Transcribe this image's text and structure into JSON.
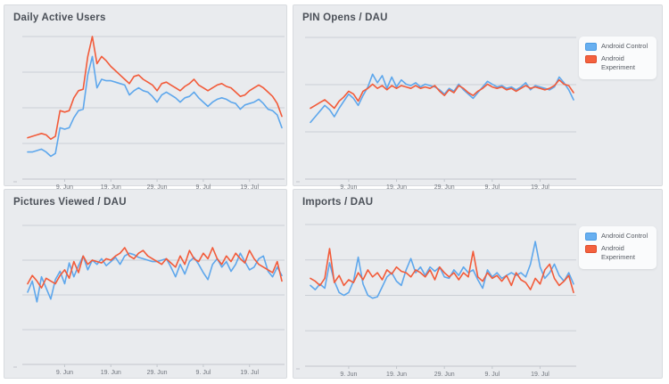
{
  "palette": {
    "control": "#5ea7ec",
    "experiment": "#f25b3a",
    "grid": "#cbcfd5",
    "axis": "#c2c6cc",
    "tick_text": "#70757d",
    "panel_bg": "#e9ebee",
    "panel_border": "#d8dbdf",
    "title_text": "#4b5058",
    "legend_bg": "#fafbfc"
  },
  "legend": {
    "items": [
      {
        "label": "Android Control",
        "color_key": "control"
      },
      {
        "label": "Android Experiment",
        "color_key": "experiment"
      }
    ]
  },
  "chart_data": [
    {
      "id": "daily-active-users",
      "type": "line",
      "title": "Daily Active Users",
      "xlabel": "",
      "ylabel": "",
      "ylim": [
        0,
        100
      ],
      "grid": true,
      "legend_visible": false,
      "x_tick_labels": [
        "9. Jun",
        "19. Jun",
        "29. Jun",
        "9. Jul",
        "19. Jul"
      ],
      "tick_day_indices": [
        8,
        18,
        28,
        38,
        48
      ],
      "total_days": 56,
      "series": [
        {
          "name": "Android Control",
          "color_key": "control",
          "values": [
            19,
            19,
            20,
            21,
            19,
            16,
            18,
            36,
            35,
            36,
            43,
            48,
            49,
            73,
            86,
            64,
            70,
            69,
            69,
            68,
            67,
            66,
            59,
            62,
            64,
            62,
            61,
            58,
            54,
            59,
            61,
            59,
            57,
            54,
            57,
            58,
            61,
            57,
            54,
            51,
            54,
            56,
            57,
            56,
            54,
            53,
            49,
            52,
            53,
            54,
            56,
            53,
            49,
            48,
            45,
            36
          ]
        },
        {
          "name": "Android Experiment",
          "color_key": "experiment",
          "values": [
            29,
            30,
            31,
            32,
            31,
            28,
            30,
            48,
            47,
            48,
            57,
            62,
            63,
            86,
            100,
            81,
            86,
            83,
            79,
            76,
            73,
            70,
            67,
            72,
            73,
            70,
            68,
            66,
            62,
            67,
            68,
            66,
            64,
            62,
            65,
            67,
            70,
            66,
            64,
            62,
            64,
            66,
            67,
            65,
            64,
            61,
            58,
            59,
            62,
            64,
            66,
            64,
            61,
            58,
            53,
            44
          ]
        }
      ]
    },
    {
      "id": "pin-opens-dau",
      "type": "line",
      "title": "PIN Opens / DAU",
      "xlabel": "",
      "ylabel": "",
      "ylim": [
        0,
        100
      ],
      "grid": true,
      "legend_visible": true,
      "x_tick_labels": [
        "9. Jun",
        "19. Jun",
        "29. Jun",
        "9. Jul",
        "19. Jul"
      ],
      "tick_day_indices": [
        8,
        18,
        28,
        38,
        48
      ],
      "total_days": 56,
      "series": [
        {
          "name": "Android Control",
          "color_key": "control",
          "values": [
            40,
            44,
            48,
            52,
            49,
            44,
            50,
            55,
            60,
            57,
            52,
            59,
            65,
            74,
            68,
            73,
            64,
            72,
            65,
            70,
            67,
            66,
            68,
            65,
            67,
            66,
            65,
            63,
            60,
            64,
            62,
            67,
            63,
            60,
            57,
            61,
            65,
            69,
            67,
            65,
            66,
            64,
            65,
            63,
            65,
            68,
            63,
            66,
            65,
            64,
            63,
            65,
            72,
            68,
            63,
            56
          ]
        },
        {
          "name": "Android Experiment",
          "color_key": "experiment",
          "values": [
            50,
            52,
            54,
            56,
            53,
            50,
            55,
            58,
            62,
            60,
            55,
            62,
            64,
            67,
            64,
            66,
            63,
            66,
            64,
            66,
            65,
            64,
            66,
            64,
            65,
            64,
            66,
            62,
            59,
            63,
            61,
            66,
            64,
            61,
            59,
            62,
            64,
            67,
            65,
            64,
            65,
            63,
            64,
            62,
            64,
            66,
            64,
            65,
            64,
            63,
            64,
            66,
            70,
            67,
            66,
            61
          ]
        }
      ]
    },
    {
      "id": "pictures-viewed-dau",
      "type": "line",
      "title": "Pictures Viewed / DAU",
      "xlabel": "",
      "ylabel": "",
      "ylim": [
        0,
        100
      ],
      "grid": true,
      "legend_visible": false,
      "x_tick_labels": [
        "9. Jun",
        "19. Jun",
        "29. Jun",
        "9. Jul",
        "19. Jul"
      ],
      "tick_day_indices": [
        8,
        18,
        28,
        38,
        48
      ],
      "total_days": 56,
      "series": [
        {
          "name": "Android Control",
          "color_key": "control",
          "values": [
            52,
            60,
            45,
            63,
            55,
            47,
            61,
            67,
            58,
            73,
            63,
            71,
            78,
            68,
            75,
            72,
            76,
            71,
            74,
            77,
            72,
            78,
            80,
            79,
            77,
            76,
            75,
            74,
            74,
            75,
            76,
            70,
            63,
            72,
            65,
            74,
            77,
            72,
            66,
            61,
            72,
            76,
            70,
            74,
            67,
            72,
            80,
            74,
            68,
            70,
            76,
            78,
            67,
            63,
            70,
            64
          ]
        },
        {
          "name": "Android Experiment",
          "color_key": "experiment",
          "values": [
            58,
            64,
            60,
            55,
            62,
            60,
            58,
            64,
            68,
            62,
            74,
            66,
            78,
            72,
            75,
            74,
            73,
            76,
            75,
            78,
            80,
            84,
            78,
            76,
            80,
            82,
            78,
            76,
            74,
            72,
            76,
            73,
            70,
            78,
            72,
            82,
            76,
            74,
            80,
            76,
            84,
            76,
            72,
            78,
            74,
            80,
            76,
            73,
            82,
            76,
            72,
            70,
            68,
            66,
            74,
            60
          ]
        }
      ]
    },
    {
      "id": "imports-dau",
      "type": "line",
      "title": "Imports / DAU",
      "xlabel": "",
      "ylabel": "",
      "ylim": [
        0,
        100
      ],
      "grid": true,
      "legend_visible": true,
      "x_tick_labels": [
        "9. Jun",
        "19. Jun",
        "29. Jun",
        "9. Jul",
        "19. Jul"
      ],
      "tick_day_indices": [
        8,
        18,
        28,
        38,
        48
      ],
      "total_days": 56,
      "series": [
        {
          "name": "Android Control",
          "color_key": "control",
          "values": [
            57,
            54,
            58,
            55,
            73,
            60,
            52,
            50,
            52,
            60,
            77,
            58,
            50,
            48,
            49,
            56,
            63,
            66,
            60,
            57,
            68,
            76,
            66,
            70,
            64,
            70,
            67,
            70,
            63,
            62,
            68,
            64,
            70,
            66,
            68,
            61,
            55,
            68,
            63,
            66,
            62,
            64,
            66,
            64,
            66,
            63,
            72,
            88,
            70,
            62,
            66,
            72,
            64,
            60,
            66,
            58
          ]
        },
        {
          "name": "Android Experiment",
          "color_key": "experiment",
          "values": [
            62,
            60,
            57,
            62,
            83,
            59,
            64,
            57,
            61,
            59,
            66,
            61,
            68,
            63,
            66,
            61,
            68,
            65,
            70,
            67,
            66,
            63,
            68,
            66,
            63,
            68,
            61,
            70,
            66,
            63,
            66,
            61,
            66,
            63,
            81,
            63,
            60,
            66,
            62,
            64,
            60,
            64,
            57,
            66,
            61,
            59,
            54,
            62,
            58,
            68,
            72,
            62,
            57,
            60,
            64,
            52
          ]
        }
      ]
    }
  ]
}
